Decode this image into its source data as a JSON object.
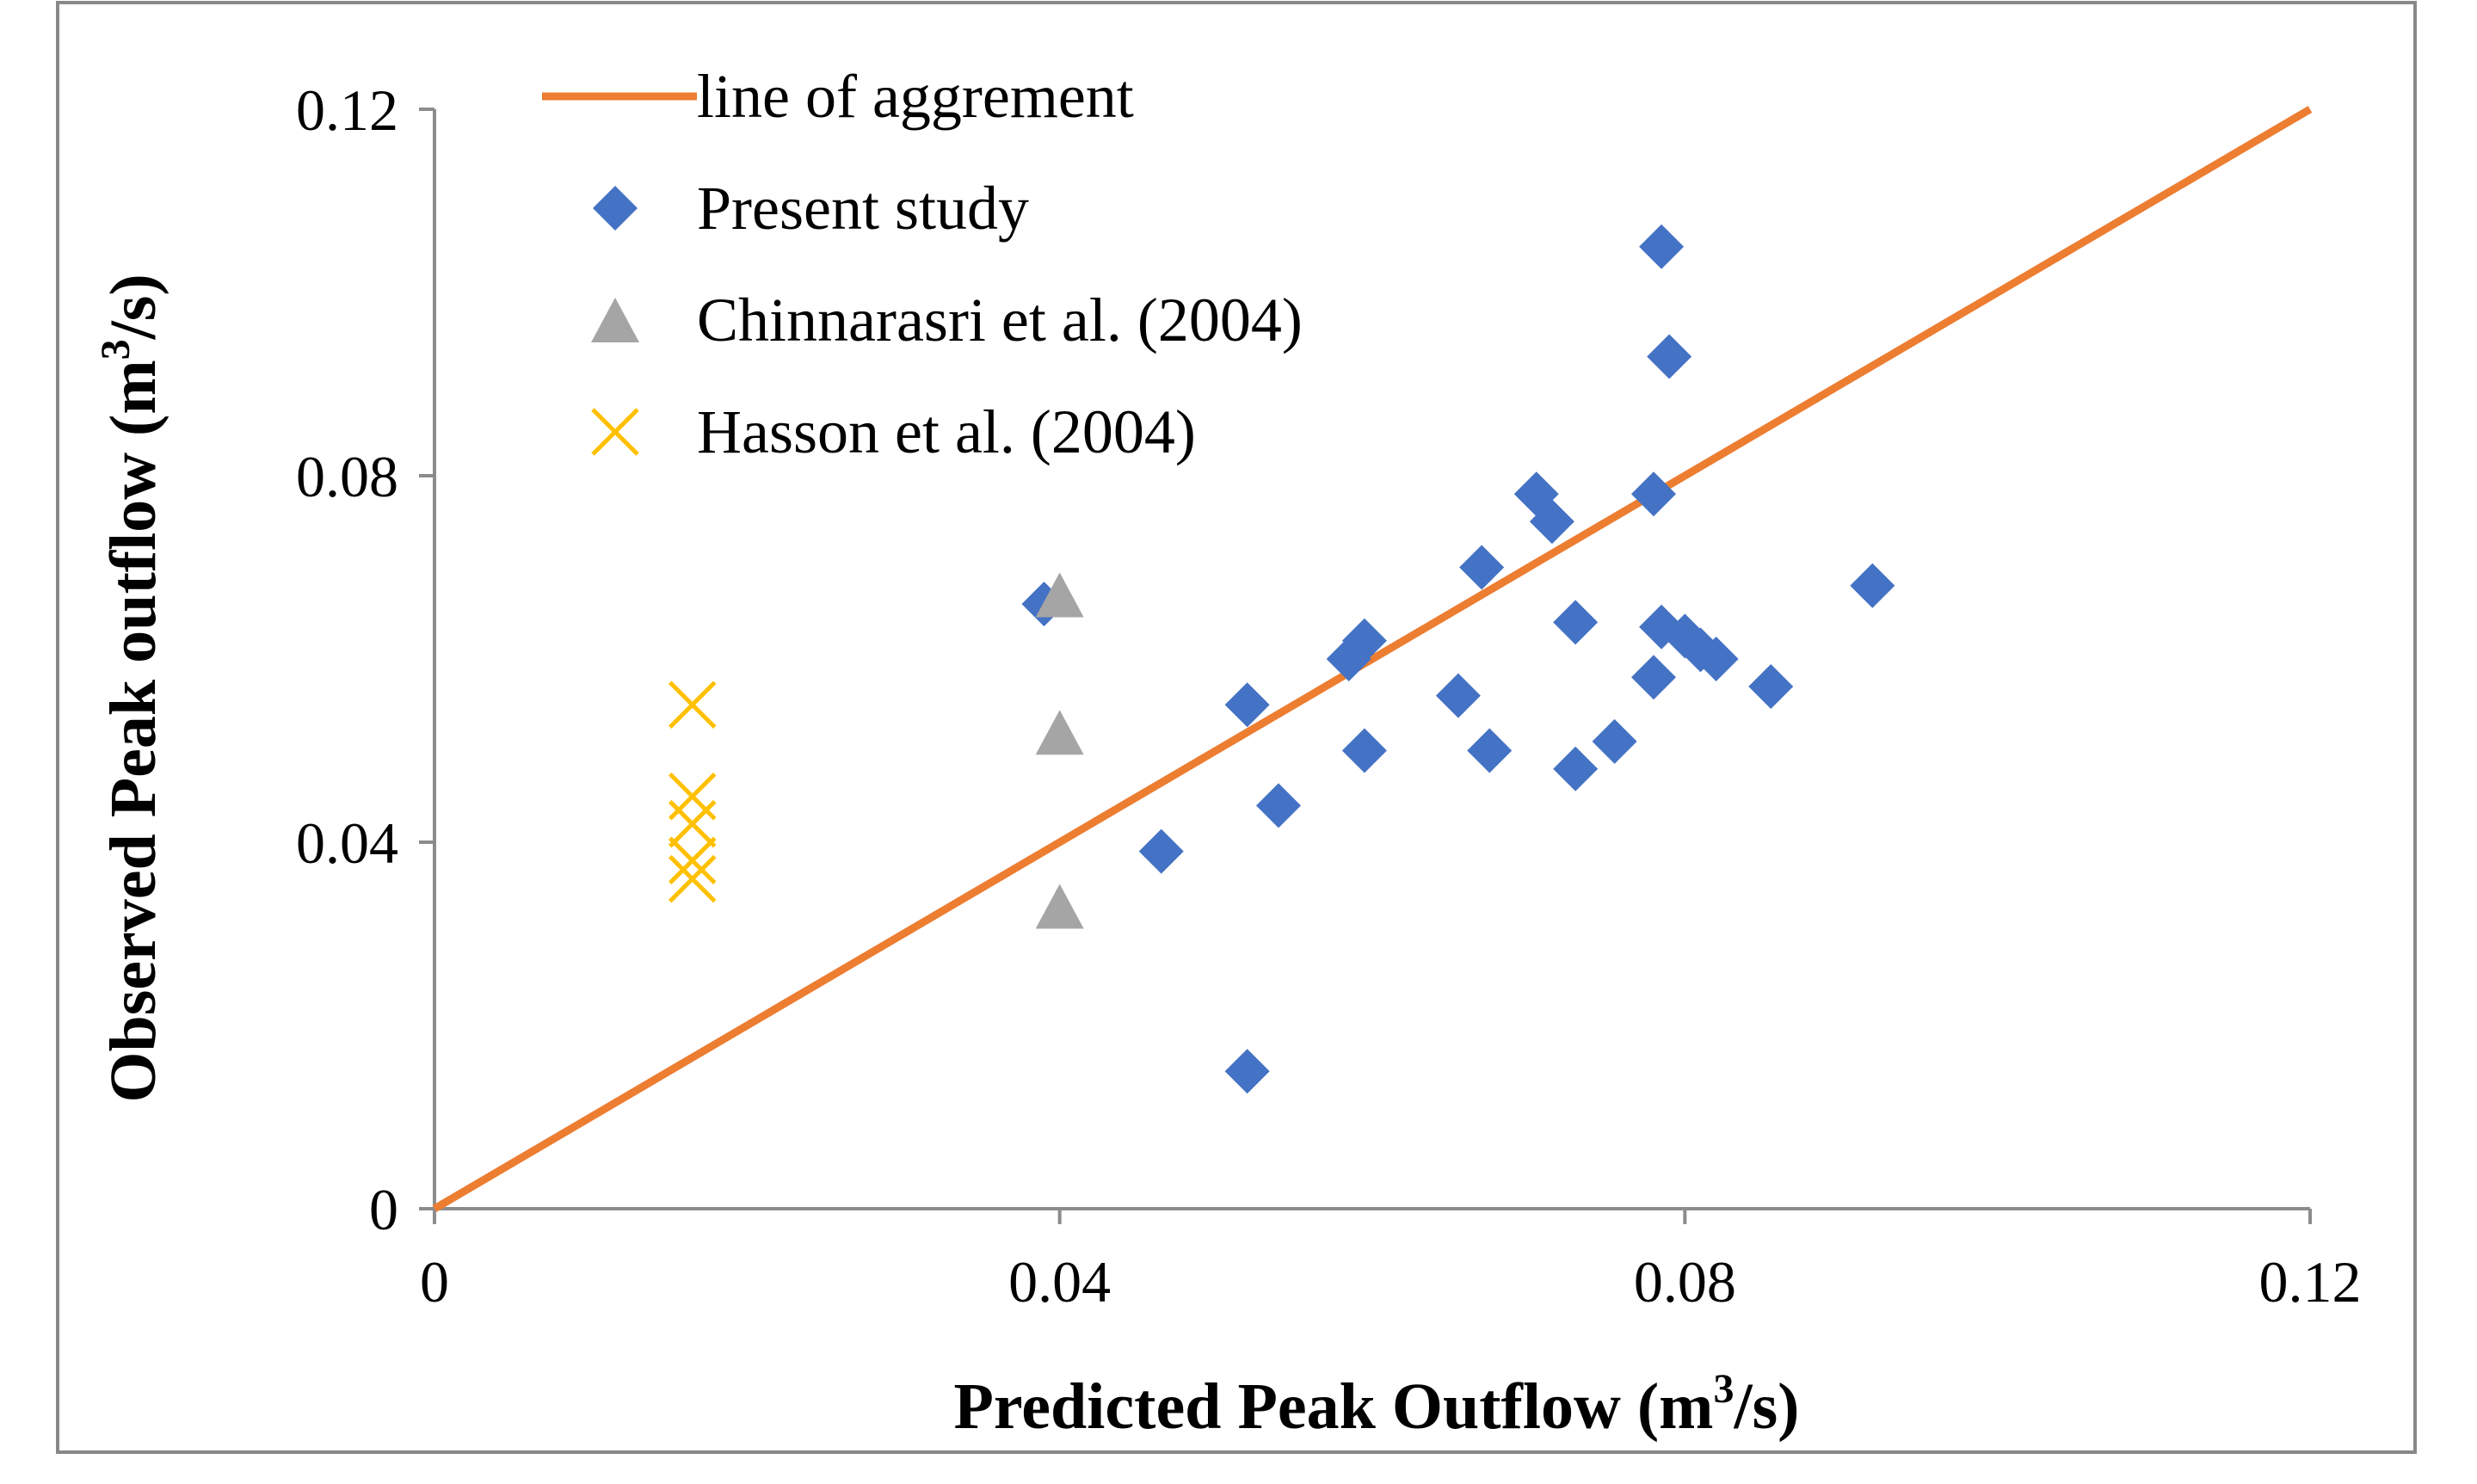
{
  "chart_data": {
    "type": "scatter",
    "title": "",
    "xlabel": "Predicted Peak Outflow (m³/s)",
    "ylabel": "Observed Peak outflow (m³/s)",
    "xlabel_parts": {
      "pre": "Predicted Peak Outflow (m",
      "sup": "3",
      "post": "/s)"
    },
    "ylabel_parts": {
      "pre": "Observed Peak outflow (m",
      "sup": "3",
      "post": "/s)"
    },
    "xlim": [
      0,
      0.12
    ],
    "ylim": [
      0,
      0.12
    ],
    "x_ticks": [
      0,
      0.04,
      0.08,
      0.12
    ],
    "y_ticks": [
      0,
      0.04,
      0.08,
      0.12
    ],
    "x_tick_labels": [
      "0",
      "0.04",
      "0.08",
      "0.12"
    ],
    "y_tick_labels": [
      "0",
      "0.04",
      "0.08",
      "0.12"
    ],
    "grid": false,
    "legend_position": "top-left",
    "series": [
      {
        "name": "line of aggrement",
        "kind": "line",
        "color": "#ED7D31",
        "points": [
          [
            0,
            0
          ],
          [
            0.12,
            0.12
          ]
        ]
      },
      {
        "name": "Present study",
        "kind": "diamond",
        "color": "#4472C4",
        "points": [
          [
            0.0785,
            0.105
          ],
          [
            0.079,
            0.093
          ],
          [
            0.0705,
            0.078
          ],
          [
            0.0715,
            0.075
          ],
          [
            0.078,
            0.078
          ],
          [
            0.067,
            0.07
          ],
          [
            0.039,
            0.066
          ],
          [
            0.073,
            0.064
          ],
          [
            0.0785,
            0.0635
          ],
          [
            0.08,
            0.0625
          ],
          [
            0.081,
            0.061
          ],
          [
            0.082,
            0.06
          ],
          [
            0.0595,
            0.062
          ],
          [
            0.0585,
            0.06
          ],
          [
            0.078,
            0.058
          ],
          [
            0.0855,
            0.057
          ],
          [
            0.0655,
            0.056
          ],
          [
            0.052,
            0.055
          ],
          [
            0.0595,
            0.05
          ],
          [
            0.0675,
            0.05
          ],
          [
            0.0755,
            0.051
          ],
          [
            0.073,
            0.048
          ],
          [
            0.054,
            0.044
          ],
          [
            0.0465,
            0.039
          ],
          [
            0.052,
            0.015
          ],
          [
            0.092,
            0.068
          ]
        ]
      },
      {
        "name": "Chinnarasri et al. (2004)",
        "kind": "triangle",
        "color": "#A5A5A5",
        "points": [
          [
            0.04,
            0.067
          ],
          [
            0.04,
            0.052
          ],
          [
            0.04,
            0.033
          ]
        ]
      },
      {
        "name": "Hasson et al. (2004)",
        "kind": "cross",
        "color": "#FFC000",
        "points": [
          [
            0.0165,
            0.055
          ],
          [
            0.0165,
            0.045
          ],
          [
            0.0165,
            0.042
          ],
          [
            0.0165,
            0.038
          ],
          [
            0.0165,
            0.036
          ]
        ]
      }
    ]
  }
}
